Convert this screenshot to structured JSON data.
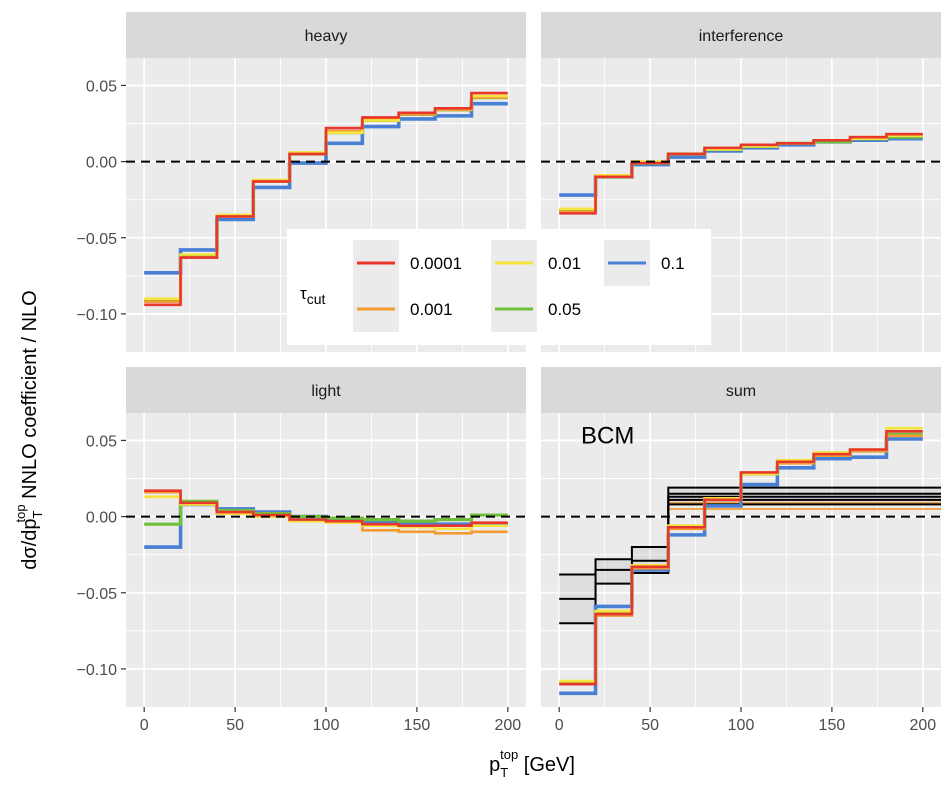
{
  "chart_data": {
    "type": "line",
    "subtype": "faceted step histogram",
    "xlabel": {
      "main": "p",
      "sub": "T",
      "sup": "top",
      "unit": " [GeV]"
    },
    "ylabel": {
      "pre": "dσ/dp",
      "sub": "T",
      "sup": "top",
      "post": " NNLO coefficient / NLO"
    },
    "xlim": [
      -10,
      210
    ],
    "xticks": [
      0,
      50,
      100,
      150,
      200
    ],
    "bin_edges": [
      0,
      20,
      40,
      60,
      80,
      100,
      120,
      140,
      160,
      180,
      200
    ],
    "colors": {
      "0.0001": "#e8362d",
      "0.001": "#f39b34",
      "0.01": "#f6e43c",
      "0.05": "#72bf3c",
      "0.1": "#4a7fd6",
      "BCM": "#000000"
    },
    "legend": {
      "title_main": "τ",
      "title_sub": "cut",
      "entries": [
        "0.0001",
        "0.001",
        "0.01",
        "0.05",
        "0.1"
      ],
      "placement": "inside, center of upper panels"
    },
    "panels": [
      {
        "title": "heavy",
        "ylim": [
          -0.125,
          0.068
        ],
        "yticks": [
          "0.05",
          "0.00",
          "−0.05",
          "−0.10"
        ],
        "ytick_values": [
          0.05,
          0.0,
          -0.05,
          -0.1
        ],
        "show_yticks": true,
        "show_xticks": false,
        "series": [
          {
            "name": "0.0001",
            "values": [
              -0.094,
              -0.063,
              -0.036,
              -0.013,
              0.005,
              0.022,
              0.029,
              0.032,
              0.035,
              0.045
            ]
          },
          {
            "name": "0.001",
            "values": [
              -0.092,
              -0.063,
              -0.036,
              -0.013,
              0.005,
              0.02,
              0.028,
              0.031,
              0.034,
              0.042
            ]
          },
          {
            "name": "0.01",
            "values": [
              -0.09,
              -0.061,
              -0.035,
              -0.012,
              0.006,
              0.019,
              0.027,
              0.032,
              0.035,
              0.043
            ]
          },
          {
            "name": "0.05",
            "values": [
              -0.091,
              -0.062,
              -0.036,
              -0.013,
              0.005,
              0.019,
              0.027,
              0.031,
              0.034,
              0.042
            ]
          },
          {
            "name": "0.1",
            "values": [
              -0.073,
              -0.058,
              -0.038,
              -0.017,
              -0.001,
              0.012,
              0.023,
              0.028,
              0.03,
              0.038
            ]
          }
        ]
      },
      {
        "title": "interference",
        "ylim": [
          -0.125,
          0.068
        ],
        "yticks": [],
        "ytick_values": [],
        "show_yticks": false,
        "show_xticks": false,
        "series": [
          {
            "name": "0.0001",
            "values": [
              -0.034,
              -0.01,
              -0.001,
              0.005,
              0.009,
              0.011,
              0.012,
              0.014,
              0.016,
              0.018
            ]
          },
          {
            "name": "0.001",
            "values": [
              -0.033,
              -0.01,
              -0.001,
              0.005,
              0.009,
              0.011,
              0.012,
              0.014,
              0.016,
              0.018
            ]
          },
          {
            "name": "0.01",
            "values": [
              -0.031,
              -0.009,
              0.0,
              0.005,
              0.008,
              0.01,
              0.012,
              0.014,
              0.015,
              0.017
            ]
          },
          {
            "name": "0.05",
            "values": [
              -0.032,
              -0.01,
              -0.001,
              0.005,
              0.008,
              0.01,
              0.012,
              0.013,
              0.015,
              0.016
            ]
          },
          {
            "name": "0.1",
            "values": [
              -0.022,
              -0.01,
              -0.002,
              0.003,
              0.007,
              0.009,
              0.011,
              0.013,
              0.014,
              0.015
            ]
          }
        ]
      },
      {
        "title": "light",
        "ylim": [
          -0.125,
          0.068
        ],
        "yticks": [
          "0.05",
          "0.00",
          "−0.05",
          "−0.10"
        ],
        "ytick_values": [
          0.05,
          0.0,
          -0.05,
          -0.1
        ],
        "show_yticks": true,
        "show_xticks": true,
        "series": [
          {
            "name": "0.0001",
            "values": [
              0.017,
              0.009,
              0.003,
              0.001,
              -0.002,
              -0.003,
              -0.005,
              -0.006,
              -0.006,
              -0.004
            ]
          },
          {
            "name": "0.001",
            "values": [
              0.016,
              0.008,
              0.002,
              0.0,
              -0.003,
              -0.004,
              -0.009,
              -0.01,
              -0.011,
              -0.01
            ]
          },
          {
            "name": "0.01",
            "values": [
              0.013,
              0.008,
              0.002,
              0.0,
              -0.003,
              -0.004,
              -0.006,
              -0.007,
              -0.008,
              -0.006
            ]
          },
          {
            "name": "0.05",
            "values": [
              -0.005,
              0.01,
              0.004,
              0.002,
              0.0,
              -0.001,
              -0.002,
              -0.003,
              -0.002,
              0.001
            ]
          },
          {
            "name": "0.1",
            "values": [
              -0.02,
              0.008,
              0.005,
              0.003,
              0.0,
              -0.002,
              -0.004,
              -0.004,
              -0.005,
              -0.005
            ]
          }
        ]
      },
      {
        "title": "sum",
        "annotation": "BCM",
        "ylim": [
          -0.125,
          0.068
        ],
        "yticks": [],
        "ytick_values": [],
        "show_yticks": false,
        "show_xticks": true,
        "series": [
          {
            "name": "0.0001",
            "values": [
              -0.11,
              -0.064,
              -0.033,
              -0.007,
              0.011,
              0.029,
              0.036,
              0.041,
              0.044,
              0.056
            ]
          },
          {
            "name": "0.001",
            "values": [
              -0.11,
              -0.065,
              -0.034,
              -0.008,
              0.011,
              0.028,
              0.035,
              0.04,
              0.043,
              0.053
            ]
          },
          {
            "name": "0.01",
            "values": [
              -0.108,
              -0.062,
              -0.032,
              -0.006,
              0.012,
              0.028,
              0.037,
              0.042,
              0.044,
              0.058
            ]
          },
          {
            "name": "0.05",
            "values": [
              -0.109,
              -0.063,
              -0.033,
              -0.007,
              0.011,
              0.028,
              0.036,
              0.041,
              0.043,
              0.054
            ]
          },
          {
            "name": "0.1",
            "values": [
              -0.116,
              -0.059,
              -0.035,
              -0.012,
              0.007,
              0.021,
              0.032,
              0.038,
              0.039,
              0.051
            ]
          }
        ],
        "bcm_bands": {
          "black": [
            {
              "from": 0,
              "to": 20,
              "lo": -0.07,
              "mid": -0.054,
              "hi": -0.038
            },
            {
              "from": 20,
              "to": 40,
              "lo": -0.044,
              "mid": -0.035,
              "hi": -0.028
            },
            {
              "from": 40,
              "to": 60,
              "lo": -0.037,
              "mid": -0.029,
              "hi": -0.02
            },
            {
              "from": 60,
              "to": 210,
              "lo": 0.008,
              "mid": 0.013,
              "hi": 0.019
            }
          ],
          "orange": {
            "from": 60,
            "to": 210,
            "lines": [
              0.005,
              0.009,
              0.011
            ]
          },
          "black_extra": {
            "from": 60,
            "to": 210,
            "lines": [
              0.015,
              0.011
            ]
          }
        }
      }
    ]
  }
}
